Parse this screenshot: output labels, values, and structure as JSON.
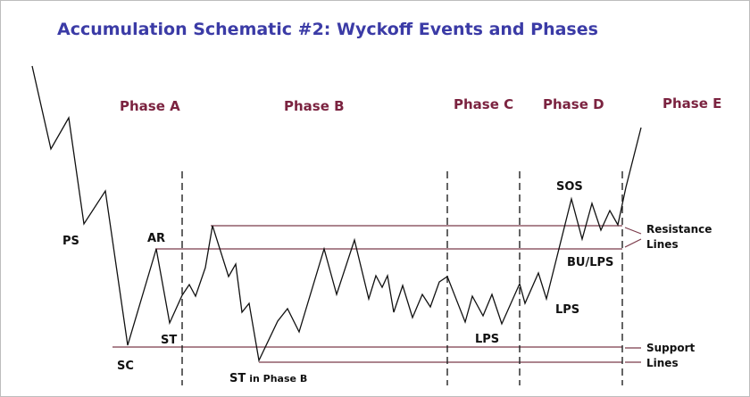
{
  "title": "Accumulation Schematic #2: Wyckoff Events and Phases",
  "phases": {
    "a": "Phase A",
    "b": "Phase B",
    "c": "Phase C",
    "d": "Phase D",
    "e": "Phase E"
  },
  "events": {
    "ps": "PS",
    "sc": "SC",
    "ar": "AR",
    "st": "ST",
    "st_in": "ST",
    "st_in_suffix": "in Phase B",
    "lps_c": "LPS",
    "lps_d": "LPS",
    "sos": "SOS",
    "bu_lps": "BU/LPS"
  },
  "lines": {
    "resistance_1": "Resistance",
    "resistance_2": "Lines",
    "support_1": "Support",
    "support_2": "Lines"
  },
  "colors": {
    "title": "#3b3ba6",
    "phase_label": "#7b2340",
    "price_path": "#111111",
    "level_line": "#7b3a4a"
  }
}
